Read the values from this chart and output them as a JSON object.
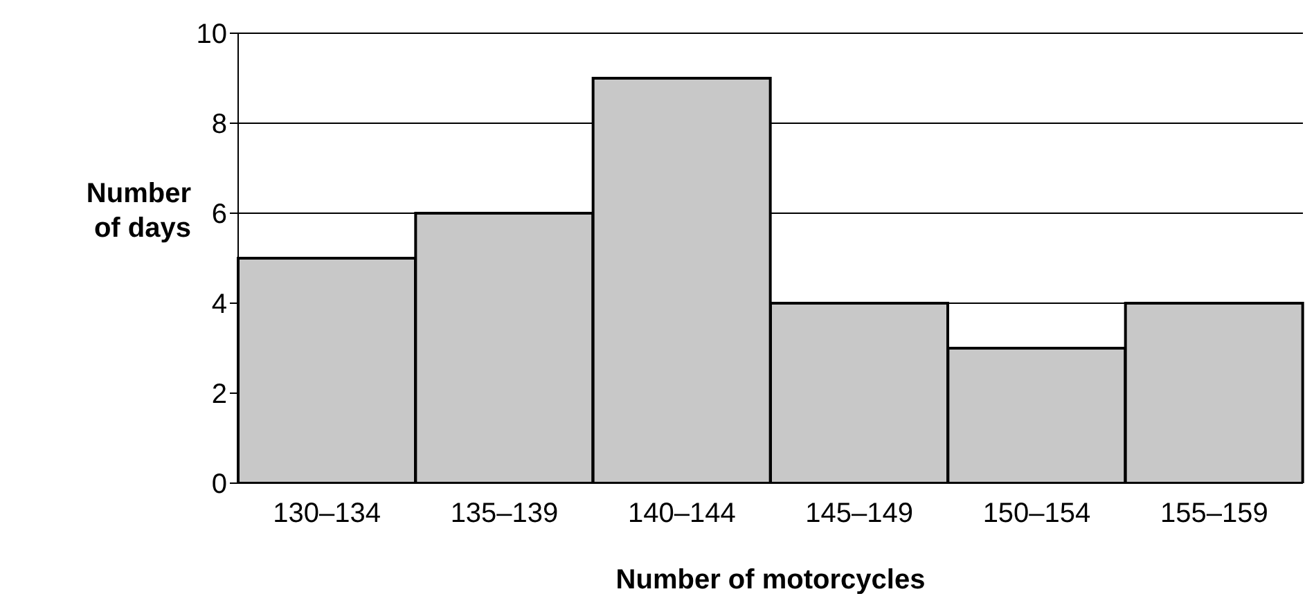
{
  "chart_data": {
    "type": "bar",
    "xlabel": "Number of motorcycles",
    "ylabel": "Number of days",
    "categories": [
      "130–134",
      "135–139",
      "140–144",
      "145–149",
      "150–154",
      "155–159"
    ],
    "values": [
      5,
      6,
      9,
      4,
      3,
      4
    ],
    "color": "#c8c8c8",
    "ylim": [
      0,
      10
    ],
    "yticks": [
      0,
      2,
      4,
      6,
      8,
      10
    ],
    "grid": "y"
  }
}
